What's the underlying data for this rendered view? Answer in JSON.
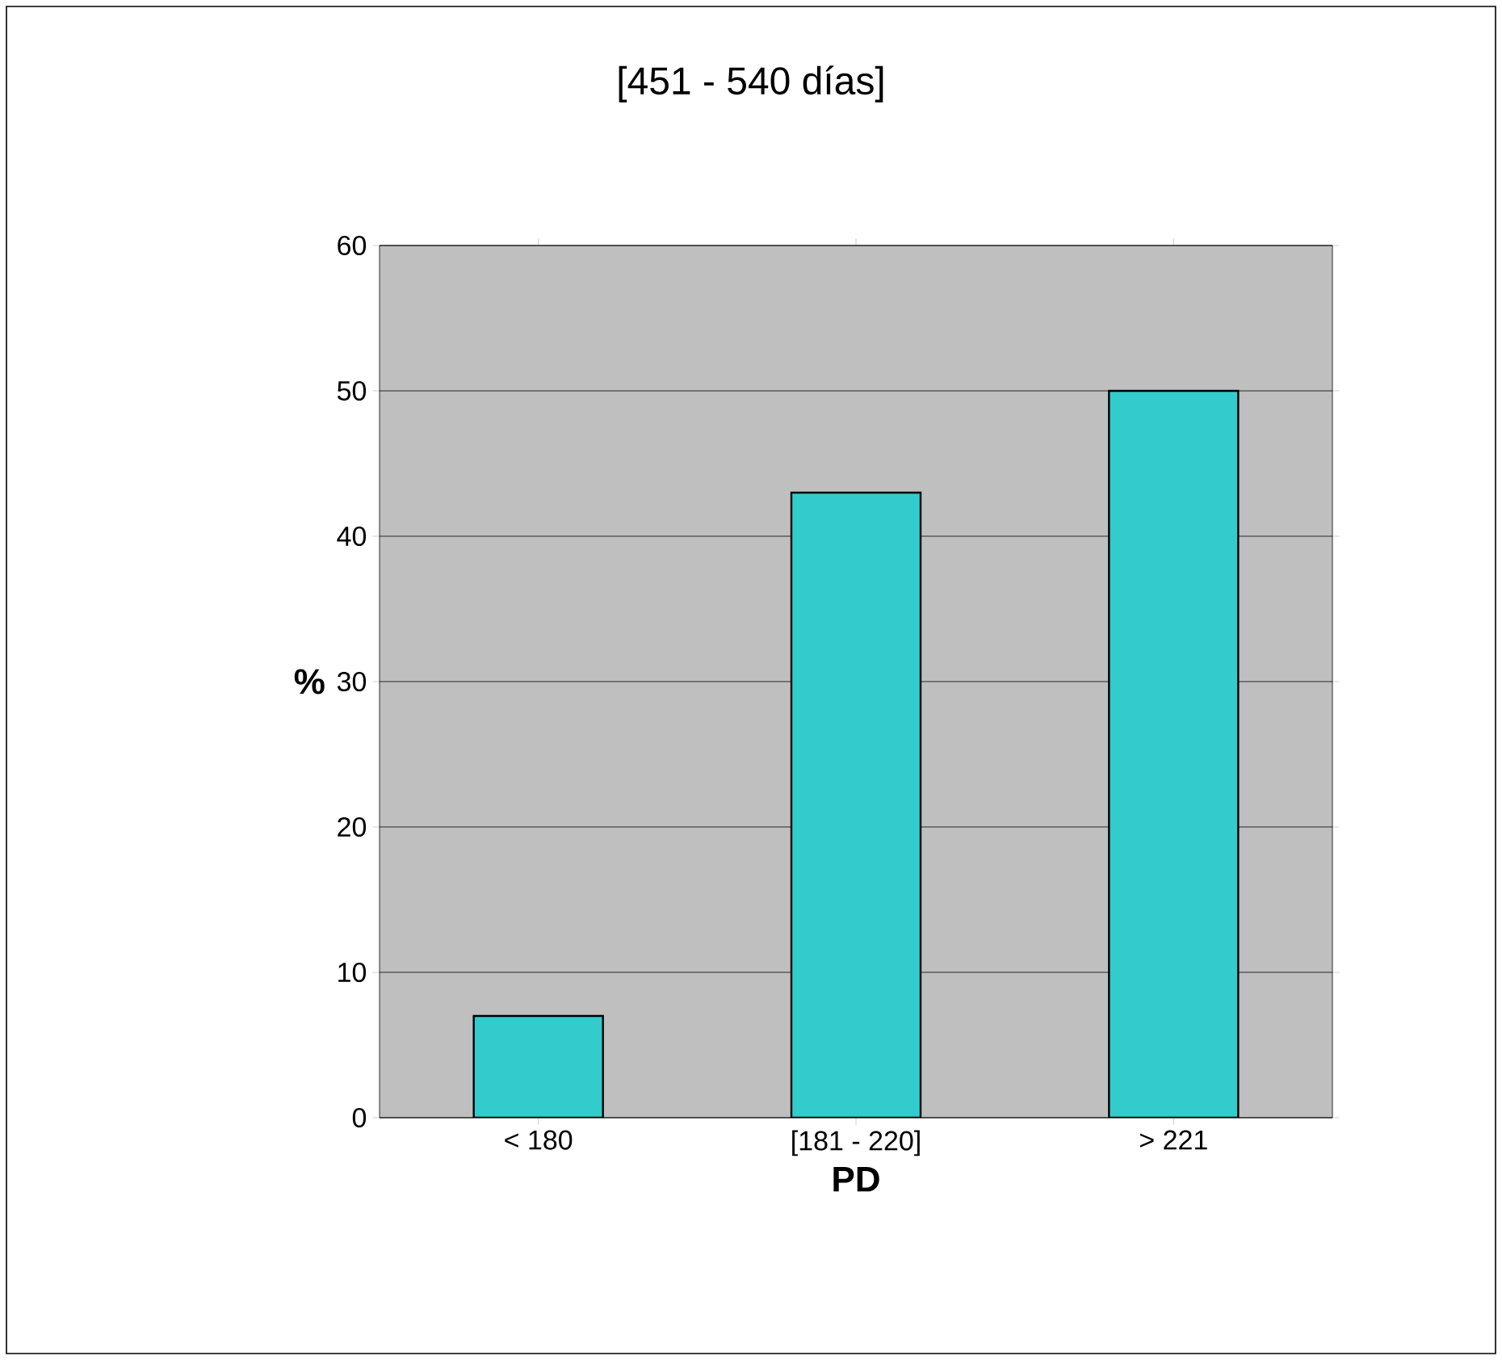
{
  "chart_data": {
    "type": "bar",
    "title": "[451 - 540 días]",
    "xlabel": "PD",
    "ylabel": "%",
    "categories": [
      "< 180",
      "[181 - 220]",
      "> 221"
    ],
    "values": [
      7,
      43,
      50
    ],
    "color": "#33cccc",
    "ylim": [
      0,
      60
    ],
    "yticks": [
      0,
      10,
      20,
      30,
      40,
      50,
      60
    ],
    "grid": "y"
  }
}
